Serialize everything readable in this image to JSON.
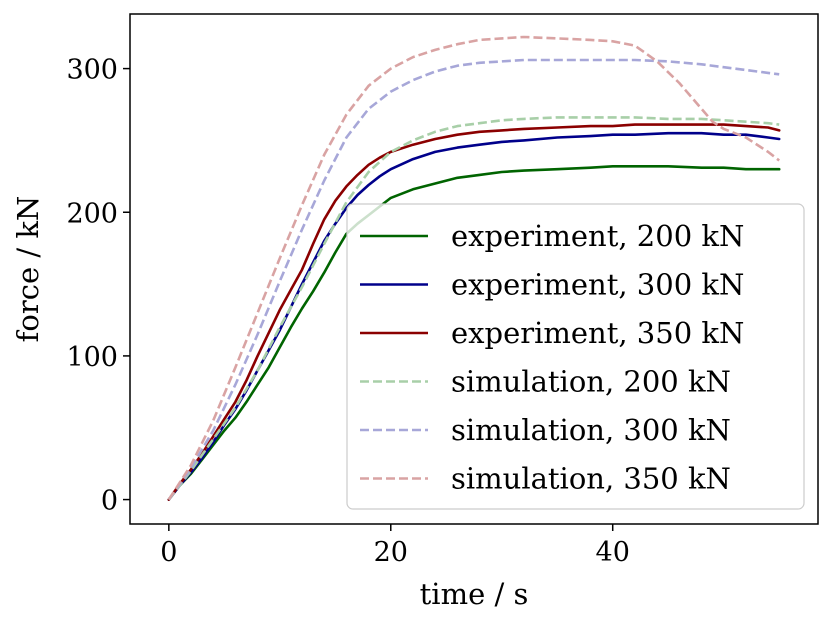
{
  "chart_data": {
    "type": "line",
    "title": "",
    "xlabel": "time / s",
    "ylabel": "force / kN",
    "xlim": [
      -3.5,
      58.5
    ],
    "ylim": [
      -17,
      338
    ],
    "xticks": [
      0,
      20,
      40
    ],
    "yticks": [
      0,
      100,
      200,
      300
    ],
    "grid": false,
    "legend_position": "lower-right",
    "series": [
      {
        "name": "experiment, 200 kN",
        "color": "#006400",
        "style": "solid",
        "x": [
          0,
          1,
          2,
          3,
          4,
          5,
          6,
          7,
          8,
          9,
          10,
          11,
          12,
          13,
          14,
          15,
          16,
          17,
          18,
          19,
          20,
          22,
          24,
          26,
          28,
          30,
          32,
          35,
          38,
          40,
          42,
          45,
          48,
          50,
          52,
          54,
          55
        ],
        "y": [
          0,
          10,
          18,
          28,
          38,
          48,
          57,
          68,
          80,
          92,
          106,
          120,
          133,
          145,
          158,
          172,
          185,
          192,
          198,
          204,
          210,
          216,
          220,
          224,
          226,
          228,
          229,
          230,
          231,
          232,
          232,
          232,
          231,
          231,
          230,
          230,
          230
        ]
      },
      {
        "name": "experiment, 300 kN",
        "color": "#00008b",
        "style": "solid",
        "x": [
          0,
          1,
          2,
          3,
          4,
          5,
          6,
          7,
          8,
          9,
          10,
          11,
          12,
          13,
          14,
          15,
          16,
          17,
          18,
          19,
          20,
          22,
          24,
          26,
          28,
          30,
          32,
          35,
          38,
          40,
          42,
          45,
          48,
          50,
          52,
          54,
          55
        ],
        "y": [
          0,
          10,
          19,
          29,
          40,
          52,
          63,
          76,
          90,
          104,
          118,
          134,
          150,
          165,
          180,
          192,
          203,
          212,
          219,
          225,
          230,
          237,
          242,
          245,
          247,
          249,
          250,
          252,
          253,
          254,
          254,
          255,
          255,
          254,
          254,
          252,
          251
        ]
      },
      {
        "name": "experiment, 350 kN",
        "color": "#8b0000",
        "style": "solid",
        "x": [
          0,
          1,
          2,
          3,
          4,
          5,
          6,
          7,
          8,
          9,
          10,
          11,
          12,
          13,
          14,
          15,
          16,
          17,
          18,
          19,
          20,
          22,
          24,
          26,
          28,
          30,
          32,
          35,
          38,
          40,
          42,
          45,
          48,
          50,
          52,
          54,
          55
        ],
        "y": [
          0,
          11,
          21,
          32,
          44,
          56,
          68,
          83,
          100,
          116,
          132,
          146,
          160,
          178,
          195,
          208,
          218,
          226,
          233,
          238,
          242,
          247,
          251,
          254,
          256,
          257,
          258,
          259,
          260,
          260,
          261,
          261,
          261,
          261,
          260,
          259,
          257
        ]
      },
      {
        "name": "simulation, 200 kN",
        "color": "#a8cfa8",
        "style": "dashed",
        "x": [
          0,
          2,
          4,
          6,
          8,
          10,
          12,
          14,
          16,
          18,
          20,
          22,
          24,
          26,
          28,
          30,
          32,
          35,
          38,
          40,
          42,
          45,
          48,
          50,
          52,
          54,
          55
        ],
        "y": [
          0,
          20,
          42,
          64,
          90,
          120,
          148,
          178,
          207,
          228,
          242,
          250,
          256,
          260,
          262,
          264,
          265,
          266,
          266,
          266,
          266,
          265,
          265,
          264,
          263,
          262,
          261
        ]
      },
      {
        "name": "simulation, 300 kN",
        "color": "#a7a7d8",
        "style": "dashed",
        "x": [
          0,
          2,
          4,
          6,
          8,
          10,
          12,
          14,
          16,
          18,
          20,
          22,
          24,
          26,
          28,
          30,
          32,
          35,
          38,
          40,
          42,
          45,
          48,
          50,
          52,
          54,
          55
        ],
        "y": [
          0,
          22,
          48,
          80,
          115,
          152,
          188,
          222,
          252,
          272,
          284,
          292,
          298,
          302,
          304,
          305,
          306,
          306,
          306,
          306,
          306,
          305,
          303,
          301,
          299,
          297,
          296
        ]
      },
      {
        "name": "simulation, 350 kN",
        "color": "#d9a3a3",
        "style": "dashed",
        "x": [
          0,
          2,
          4,
          6,
          8,
          10,
          12,
          14,
          16,
          18,
          20,
          22,
          24,
          26,
          28,
          30,
          32,
          35,
          38,
          40,
          42,
          44,
          46,
          48,
          49,
          50,
          52,
          54,
          55
        ],
        "y": [
          0,
          24,
          55,
          92,
          130,
          168,
          205,
          240,
          268,
          288,
          300,
          308,
          313,
          317,
          320,
          321,
          322,
          321,
          320,
          319,
          316,
          305,
          290,
          272,
          263,
          258,
          252,
          242,
          236
        ]
      }
    ]
  }
}
